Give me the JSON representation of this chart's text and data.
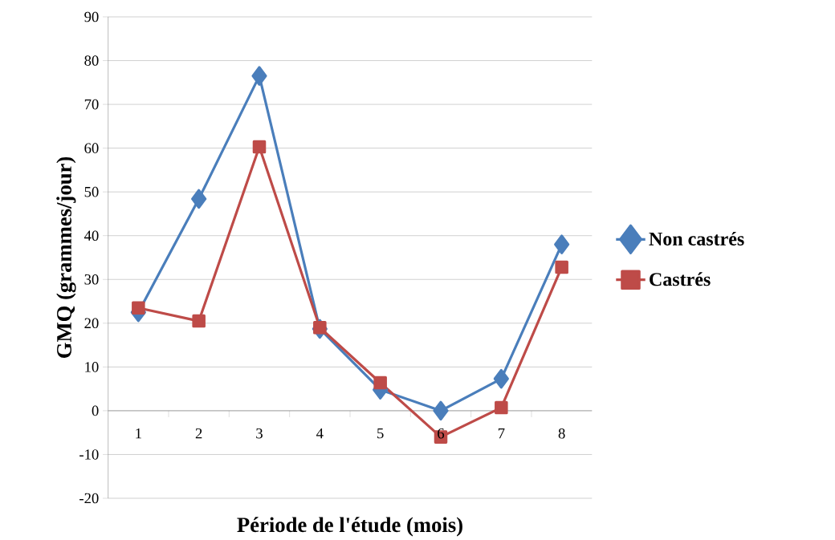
{
  "chart_data": {
    "type": "line",
    "xlabel": "Période de l'étude (mois)",
    "ylabel": "GMQ (grammes/jour)",
    "categories": [
      "1",
      "2",
      "3",
      "4",
      "5",
      "6",
      "7",
      "8"
    ],
    "series": [
      {
        "name": "Non castrés",
        "color": "#4a7ebb",
        "marker": "diamond",
        "values": [
          22.5,
          48.4,
          76.5,
          18.7,
          4.8,
          0,
          7.3,
          38
        ]
      },
      {
        "name": "Castrés",
        "color": "#be4b48",
        "marker": "square",
        "values": [
          23.5,
          20.5,
          60.3,
          19,
          6.4,
          -6,
          0.7,
          32.8
        ]
      }
    ],
    "ylim": [
      -20,
      90
    ],
    "yticks": [
      -20,
      -10,
      0,
      10,
      20,
      30,
      40,
      50,
      60,
      70,
      80,
      90
    ],
    "grid": "y",
    "legend": "right"
  }
}
